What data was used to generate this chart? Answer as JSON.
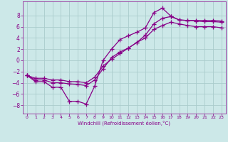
{
  "xlabel": "Windchill (Refroidissement éolien,°C)",
  "bg_color": "#cce8e8",
  "grid_color": "#aacccc",
  "line_color": "#880088",
  "xlim": [
    -0.5,
    23.5
  ],
  "ylim": [
    -9.5,
    10.5
  ],
  "xticks": [
    0,
    1,
    2,
    3,
    4,
    5,
    6,
    7,
    8,
    9,
    10,
    11,
    12,
    13,
    14,
    15,
    16,
    17,
    18,
    19,
    20,
    21,
    22,
    23
  ],
  "yticks": [
    -8,
    -6,
    -4,
    -2,
    0,
    2,
    4,
    6,
    8
  ],
  "line1_x": [
    0,
    1,
    2,
    3,
    4,
    5,
    6,
    7,
    8,
    9,
    10,
    11,
    12,
    13,
    14,
    15,
    16,
    17,
    18,
    19,
    20,
    21,
    22,
    23
  ],
  "line1_y": [
    -2.7,
    -3.8,
    -3.8,
    -4.8,
    -4.8,
    -7.3,
    -7.3,
    -7.8,
    -4.6,
    0.0,
    2.0,
    3.7,
    4.4,
    5.0,
    5.8,
    8.5,
    9.3,
    7.9,
    7.2,
    7.1,
    7.1,
    7.1,
    7.1,
    7.0
  ],
  "line2_x": [
    0,
    1,
    2,
    3,
    4,
    5,
    6,
    7,
    8,
    9,
    10,
    11,
    12,
    13,
    14,
    15,
    16,
    17,
    18,
    19,
    20,
    21,
    22,
    23
  ],
  "line2_y": [
    -2.7,
    -3.5,
    -3.5,
    -4.0,
    -4.0,
    -4.2,
    -4.3,
    -4.5,
    -3.5,
    -1.5,
    0.5,
    1.5,
    2.2,
    3.2,
    4.5,
    6.5,
    7.5,
    7.8,
    7.2,
    7.1,
    7.0,
    6.9,
    6.9,
    6.8
  ],
  "line3_x": [
    0,
    1,
    2,
    3,
    4,
    5,
    6,
    7,
    8,
    9,
    10,
    11,
    12,
    13,
    14,
    15,
    16,
    17,
    18,
    19,
    20,
    21,
    22,
    23
  ],
  "line3_y": [
    -2.7,
    -3.2,
    -3.2,
    -3.5,
    -3.5,
    -3.8,
    -3.8,
    -4.0,
    -3.0,
    -1.0,
    0.2,
    1.2,
    2.2,
    3.2,
    4.0,
    5.5,
    6.2,
    6.8,
    6.5,
    6.2,
    6.0,
    6.0,
    6.0,
    5.8
  ]
}
